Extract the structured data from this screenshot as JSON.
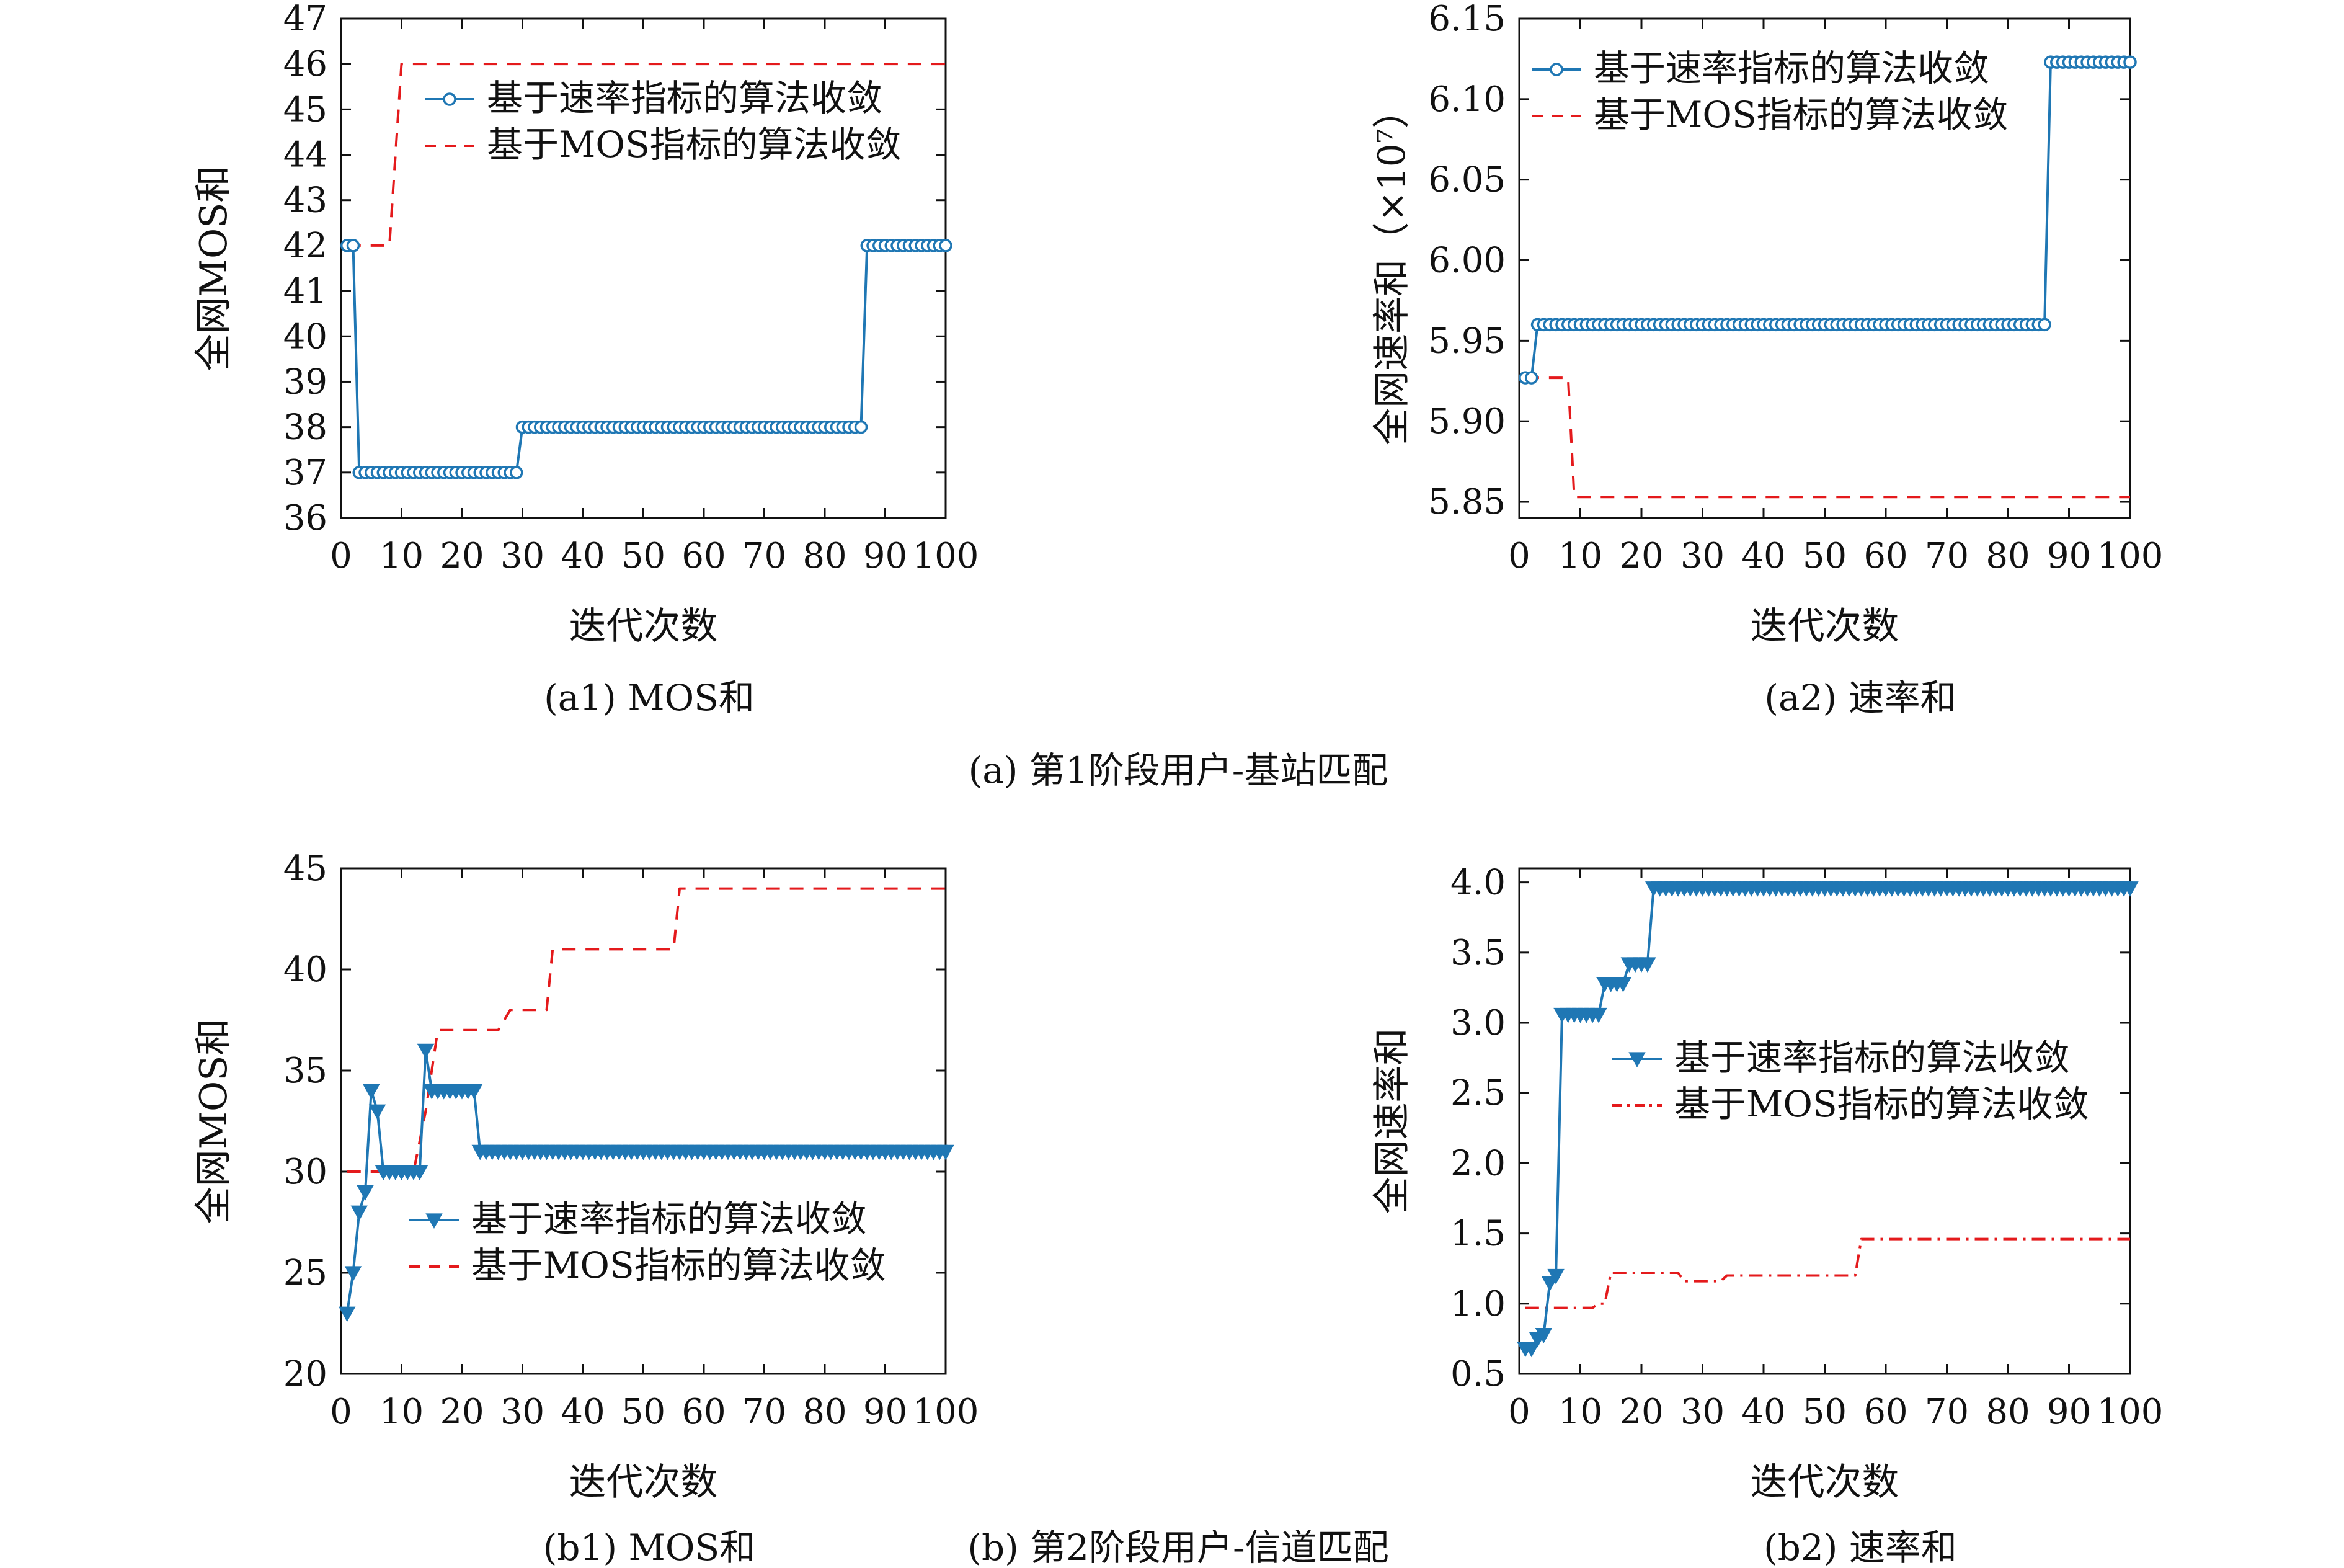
{
  "captions": {
    "a": "(a) 第1阶段用户-基站匹配",
    "b": "(b) 第2阶段用户-信道匹配"
  },
  "colors": {
    "rate": "#1f77b4",
    "mos": "#e41a1c"
  },
  "chart_data": [
    {
      "id": "a1",
      "type": "line",
      "caption": "(a1) MOS和",
      "xlabel": "迭代次数",
      "ylabel": "全网MOS和",
      "xlim": [
        0,
        100
      ],
      "ylim": [
        36,
        47
      ],
      "xticks": [
        0,
        10,
        20,
        30,
        40,
        50,
        60,
        70,
        80,
        90,
        100
      ],
      "yticks": [
        36,
        37,
        38,
        39,
        40,
        41,
        42,
        43,
        44,
        45,
        46,
        47
      ],
      "ytick_labels": [
        "36",
        "37",
        "38",
        "39",
        "40",
        "41",
        "42",
        "43",
        "44",
        "45",
        "46",
        "47"
      ],
      "legend": "top-center",
      "series": [
        {
          "name": "基于速率指标的算法收敛",
          "marker": "circle",
          "dash": "solid",
          "points": [
            [
              1,
              42
            ],
            [
              2,
              42
            ],
            [
              3,
              37
            ],
            [
              29,
              37
            ],
            [
              30,
              38
            ],
            [
              86,
              38
            ],
            [
              87,
              42
            ],
            [
              100,
              42
            ]
          ]
        },
        {
          "name": "基于MOS指标的算法收敛",
          "marker": "none",
          "dash": "dashed",
          "points": [
            [
              1,
              42
            ],
            [
              8,
              42
            ],
            [
              10,
              46
            ],
            [
              100,
              46
            ]
          ]
        }
      ]
    },
    {
      "id": "a2",
      "type": "line",
      "caption": "(a2) 速率和",
      "xlabel": "迭代次数",
      "ylabel": "全网速率和（×10⁷）",
      "xlim": [
        0,
        100
      ],
      "ylim": [
        5.84,
        6.15
      ],
      "xticks": [
        0,
        10,
        20,
        30,
        40,
        50,
        60,
        70,
        80,
        90,
        100
      ],
      "yticks": [
        5.85,
        5.9,
        5.95,
        6.0,
        6.05,
        6.1,
        6.15
      ],
      "ytick_labels": [
        "5.85",
        "5.90",
        "5.95",
        "6.00",
        "6.05",
        "6.10",
        "6.15"
      ],
      "legend": "top-left",
      "series": [
        {
          "name": "基于速率指标的算法收敛",
          "marker": "circle",
          "dash": "solid",
          "points": [
            [
              1,
              5.927
            ],
            [
              2,
              5.927
            ],
            [
              3,
              5.96
            ],
            [
              86,
              5.96
            ],
            [
              87,
              6.123
            ],
            [
              100,
              6.123
            ]
          ]
        },
        {
          "name": "基于MOS指标的算法收敛",
          "marker": "none",
          "dash": "dashed",
          "points": [
            [
              1,
              5.927
            ],
            [
              8,
              5.927
            ],
            [
              9,
              5.853
            ],
            [
              100,
              5.853
            ]
          ]
        }
      ]
    },
    {
      "id": "b1",
      "type": "line",
      "caption": "(b1) MOS和",
      "xlabel": "迭代次数",
      "ylabel": "全网MOS和",
      "xlim": [
        0,
        100
      ],
      "ylim": [
        20,
        45
      ],
      "xticks": [
        0,
        10,
        20,
        30,
        40,
        50,
        60,
        70,
        80,
        90,
        100
      ],
      "yticks": [
        20,
        25,
        30,
        35,
        40,
        45
      ],
      "ytick_labels": [
        "20",
        "25",
        "30",
        "35",
        "40",
        "45"
      ],
      "legend": "bottom-center",
      "series": [
        {
          "name": "基于速率指标的算法收敛",
          "marker": "triangle-down",
          "dash": "solid",
          "points": [
            [
              1,
              23
            ],
            [
              2,
              25
            ],
            [
              3,
              28
            ],
            [
              4,
              29
            ],
            [
              5,
              34
            ],
            [
              6,
              33
            ],
            [
              7,
              30
            ],
            [
              13,
              30
            ],
            [
              14,
              36
            ],
            [
              15,
              34
            ],
            [
              22,
              34
            ],
            [
              23,
              31
            ],
            [
              100,
              31
            ]
          ]
        },
        {
          "name": "基于MOS指标的算法收敛",
          "marker": "none",
          "dash": "dashed",
          "points": [
            [
              1,
              30
            ],
            [
              12,
              30
            ],
            [
              14,
              33
            ],
            [
              16,
              37
            ],
            [
              26,
              37
            ],
            [
              28,
              38
            ],
            [
              34,
              38
            ],
            [
              35,
              41
            ],
            [
              55,
              41
            ],
            [
              56,
              44
            ],
            [
              100,
              44
            ]
          ]
        }
      ]
    },
    {
      "id": "b2",
      "type": "line",
      "caption": "(b2) 速率和",
      "xlabel": "迭代次数",
      "ylabel": "全网速率和",
      "xlim": [
        0,
        100
      ],
      "ylim": [
        0.5,
        4.1
      ],
      "xticks": [
        0,
        10,
        20,
        30,
        40,
        50,
        60,
        70,
        80,
        90,
        100
      ],
      "yticks": [
        0.5,
        1.0,
        1.5,
        2.0,
        2.5,
        3.0,
        3.5,
        4.0
      ],
      "ytick_labels": [
        "0.5",
        "1.0",
        "1.5",
        "2.0",
        "2.5",
        "3.0",
        "3.5",
        "4.0"
      ],
      "legend": "center-right",
      "series": [
        {
          "name": "基于速率指标的算法收敛",
          "marker": "triangle-down",
          "dash": "solid",
          "points": [
            [
              1,
              0.68
            ],
            [
              2,
              0.68
            ],
            [
              3,
              0.75
            ],
            [
              4,
              0.78
            ],
            [
              5,
              1.15
            ],
            [
              6,
              1.2
            ],
            [
              7,
              3.06
            ],
            [
              13,
              3.06
            ],
            [
              14,
              3.28
            ],
            [
              17,
              3.28
            ],
            [
              18,
              3.42
            ],
            [
              21,
              3.42
            ],
            [
              22,
              3.96
            ],
            [
              100,
              3.96
            ]
          ]
        },
        {
          "name": "基于MOS指标的算法收敛",
          "marker": "none",
          "dash": "dashdot",
          "points": [
            [
              1,
              0.97
            ],
            [
              12,
              0.97
            ],
            [
              13,
              1.0
            ],
            [
              14,
              1.0
            ],
            [
              15,
              1.22
            ],
            [
              20,
              1.22
            ],
            [
              21,
              1.22
            ],
            [
              26,
              1.22
            ],
            [
              27,
              1.16
            ],
            [
              33,
              1.16
            ],
            [
              34,
              1.2
            ],
            [
              55,
              1.2
            ],
            [
              56,
              1.46
            ],
            [
              100,
              1.46
            ]
          ]
        }
      ]
    }
  ]
}
